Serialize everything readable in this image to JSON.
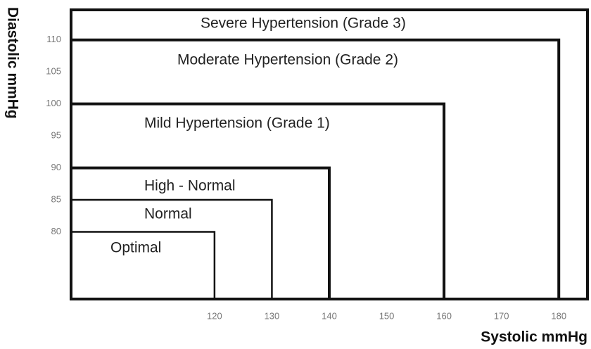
{
  "chart_data": {
    "type": "nested-regions",
    "xlabel": "Systolic mmHg",
    "ylabel": "Diastolic mmHg",
    "xlim": [
      95,
      185
    ],
    "ylim": [
      69.5,
      114.7
    ],
    "xticks": [
      120,
      130,
      140,
      150,
      160,
      170,
      180
    ],
    "yticks": [
      80,
      85,
      90,
      95,
      100,
      105,
      110
    ],
    "color": "#111111",
    "regions": [
      {
        "name": "Optimal",
        "x": 120,
        "y": 80
      },
      {
        "name": "Normal",
        "x": 130,
        "y": 85
      },
      {
        "name": "High - Normal",
        "x": 140,
        "y": 90
      },
      {
        "name": "Mild Hypertension (Grade 1)",
        "x": 160,
        "y": 100
      },
      {
        "name": "Moderate Hypertension (Grade 2)",
        "x": 180,
        "y": 110
      },
      {
        "name": "Severe Hypertension (Grade 3)"
      }
    ]
  }
}
